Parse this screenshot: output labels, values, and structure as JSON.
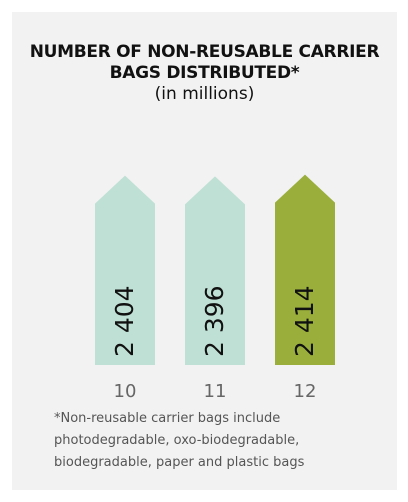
{
  "chart_data": {
    "type": "bar",
    "title": "NUMBER OF NON-REUSABLE CARRIER BAGS DISTRIBUTED*",
    "subtitle": "(in millions)",
    "categories": [
      "10",
      "11",
      "12"
    ],
    "values": [
      2404,
      2396,
      2414
    ],
    "value_labels": [
      "2 404",
      "2 396",
      "2 414"
    ],
    "highlight_index": 2,
    "colors": {
      "default": "#bfe0d4",
      "highlight": "#9aae3c",
      "axis_text": "#666666"
    },
    "footnote": "*Non-reusable carrier bags include photodegradable, oxo-biodegradable, biodegradable, paper and plastic bags"
  }
}
